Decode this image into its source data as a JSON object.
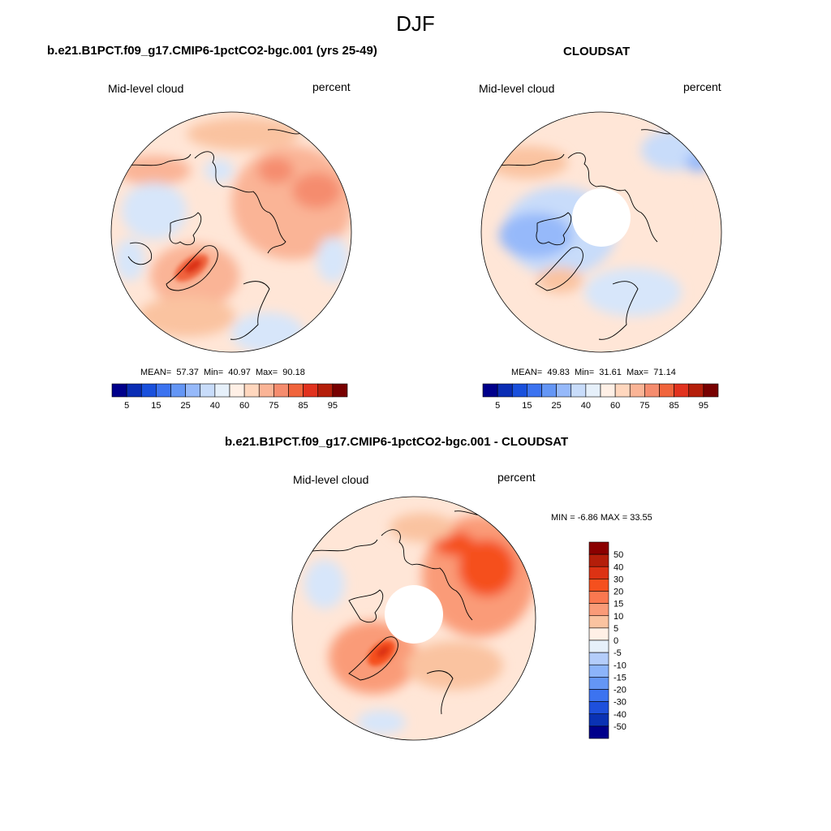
{
  "figure": {
    "season": "DJF"
  },
  "panels": [
    {
      "id": "model",
      "title": "b.e21.B1PCT.f09_g17.CMIP6-1pctCO2-bgc.001 (yrs 25-49)",
      "variable": "Mid-level cloud",
      "units": "percent",
      "stats": {
        "mean_label": "MEAN=",
        "mean": "57.37",
        "min_label": "Min=",
        "min": "40.97",
        "max_label": "Max=",
        "max": "90.18"
      },
      "projection": "north-polar-stereographic"
    },
    {
      "id": "obs",
      "title": "CLOUDSAT",
      "variable": "Mid-level cloud",
      "units": "percent",
      "stats": {
        "mean_label": "MEAN=",
        "mean": "49.83",
        "min_label": "Min=",
        "min": "31.61",
        "max_label": "Max=",
        "max": "71.14"
      },
      "projection": "north-polar-stereographic",
      "note": "missing data near the pole"
    },
    {
      "id": "diff",
      "title": "b.e21.B1PCT.f09_g17.CMIP6-1pctCO2-bgc.001 - CLOUDSAT",
      "variable": "Mid-level cloud",
      "units": "percent",
      "stats_text": "MIN =  -6.86 MAX =  33.55",
      "projection": "north-polar-stereographic"
    }
  ],
  "colorbar_abs": {
    "orientation": "horizontal",
    "colors": [
      "#00008b",
      "#0a2db4",
      "#1950dc",
      "#3c73f0",
      "#6496f5",
      "#96b9fa",
      "#c8dcfa",
      "#e6f0fa",
      "#fff0e6",
      "#ffd7be",
      "#fab496",
      "#f58c6e",
      "#f0643c",
      "#e1321e",
      "#b41e0a",
      "#780000"
    ],
    "tick_labels": [
      "5",
      "15",
      "25",
      "40",
      "60",
      "75",
      "85",
      "95"
    ]
  },
  "colorbar_diff": {
    "orientation": "vertical",
    "colors": [
      "#8b0000",
      "#b41e0a",
      "#dc3214",
      "#f5501e",
      "#fa7850",
      "#fa9b78",
      "#fac3a0",
      "#fff0e6",
      "#e6f0fa",
      "#b4cdfa",
      "#8cb4fa",
      "#6496f5",
      "#3c73f0",
      "#1e50dc",
      "#0a32b4",
      "#00008b"
    ],
    "tick_labels": [
      "50",
      "40",
      "30",
      "20",
      "15",
      "10",
      "5",
      "0",
      "-5",
      "-10",
      "-15",
      "-20",
      "-30",
      "-40",
      "-50"
    ]
  }
}
